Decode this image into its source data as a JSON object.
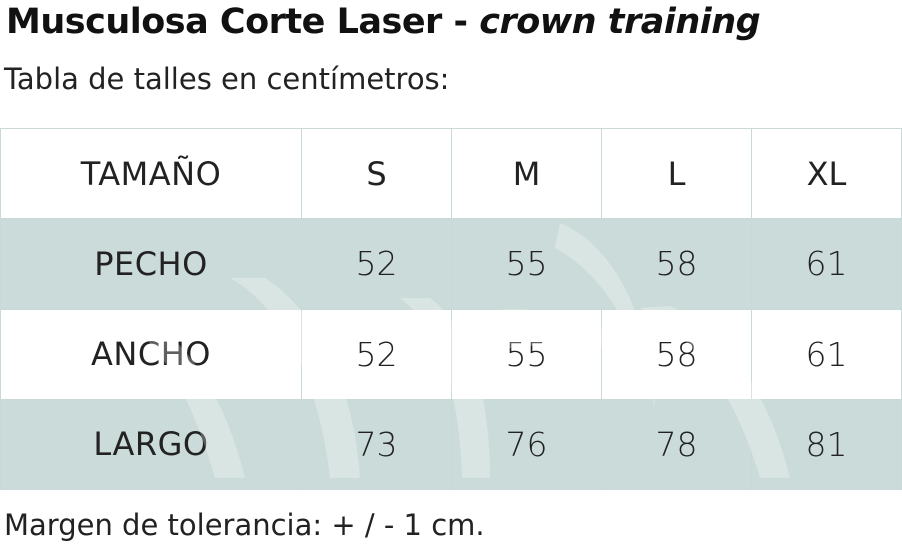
{
  "title": {
    "main": "Musculosa Corte Laser - ",
    "brand": "crown training"
  },
  "subtitle": "Tabla de talles en centímetros:",
  "table": {
    "header": [
      "TAMAÑO",
      "S",
      "M",
      "L",
      "XL"
    ],
    "rows": [
      {
        "label": "PECHO",
        "values": [
          "52",
          "55",
          "58",
          "61"
        ]
      },
      {
        "label": "ANCHO",
        "values": [
          "52",
          "55",
          "58",
          "61"
        ]
      },
      {
        "label": "LARGO",
        "values": [
          "73",
          "76",
          "78",
          "81"
        ]
      }
    ]
  },
  "footer": "Margen de tolerancia: + / - 1 cm.",
  "colors": {
    "shaded_row": "#c7d8d6",
    "border": "#c9d9d7",
    "watermark": "#e8eeed"
  }
}
